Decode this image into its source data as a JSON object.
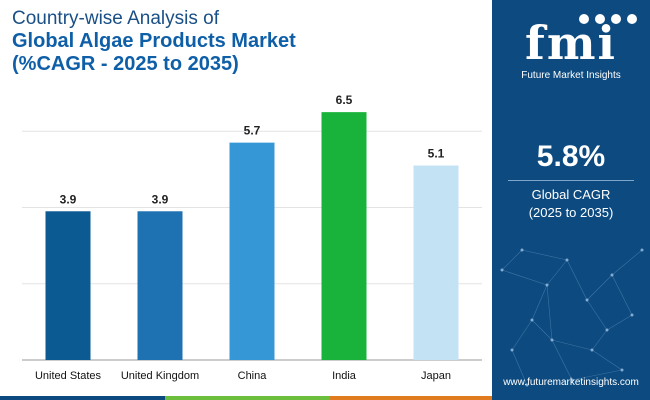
{
  "title": {
    "line1": "Country-wise Analysis of",
    "line2": "Global Algae Products Market",
    "line3": "(%CAGR - 2025 to 2035)"
  },
  "chart_data": {
    "type": "bar",
    "categories": [
      "United States",
      "United Kingdom",
      "China",
      "India",
      "Japan"
    ],
    "values": [
      3.9,
      3.9,
      5.7,
      6.5,
      5.1
    ],
    "value_labels": [
      "3.9",
      "3.9",
      "5.7",
      "6.5",
      "5.1"
    ],
    "bar_colors": [
      "#0b5a91",
      "#1f72b2",
      "#3597d6",
      "#19b33b",
      "#c3e2f4"
    ],
    "ylim": [
      0,
      7.5
    ],
    "grid": true,
    "xlabel": "",
    "ylabel": ""
  },
  "sidebar": {
    "logo_text": "fmi",
    "logo_sub": "Future Market Insights",
    "cagr_value": "5.8%",
    "cagr_label_line1": "Global CAGR",
    "cagr_label_line2": "(2025 to 2035)",
    "url": "www.futuremarketinsights.com"
  },
  "colors": {
    "sidebar_bg": "#0d4a7f",
    "title_dark": "#1a4f86",
    "title_accent": "#0f5fa8",
    "footer": [
      "#0d4a7f",
      "#6cbf3c",
      "#e07b1f",
      "#7b3a8f"
    ]
  }
}
